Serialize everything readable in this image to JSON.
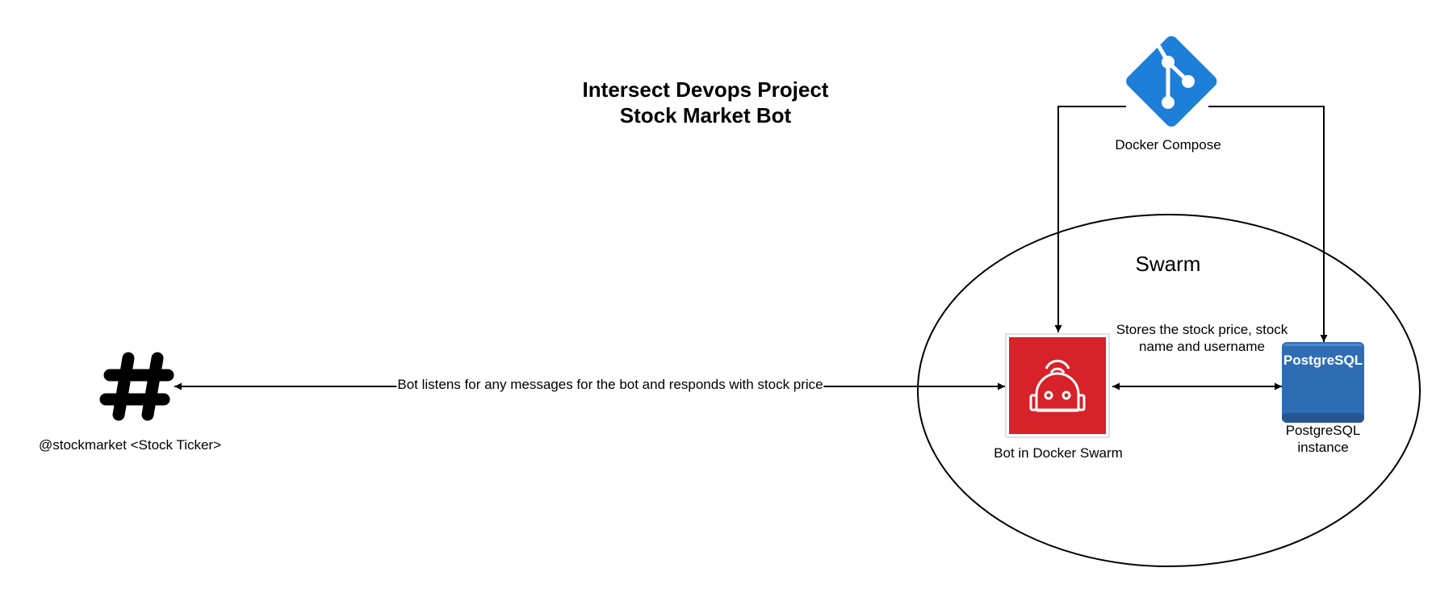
{
  "title": {
    "line1": "Intersect Devops Project",
    "line2": "Stock Market Bot"
  },
  "nodes": {
    "docker_compose": {
      "label": "Docker Compose",
      "icon": "git-branch-icon",
      "color": "#1e7fd9"
    },
    "swarm": {
      "label": "Swarm"
    },
    "bot": {
      "label": "Bot in Docker Swarm",
      "icon": "robot-icon",
      "color": "#d62228"
    },
    "postgres": {
      "label_line1": "PostgreSQL",
      "label_line2": "instance",
      "badge": "PostgreSQL",
      "icon": "database-icon",
      "color": "#2e6db4"
    },
    "slack": {
      "label": "@stockmarket <Stock Ticker>",
      "icon": "slack-hash-icon",
      "color": "#000000"
    }
  },
  "edges": {
    "slack_bot": {
      "label": "Bot listens for any messages for the bot and responds with stock price"
    },
    "bot_postgres": {
      "label_line1": "Stores the stock price, stock",
      "label_line2": "name and username"
    }
  }
}
